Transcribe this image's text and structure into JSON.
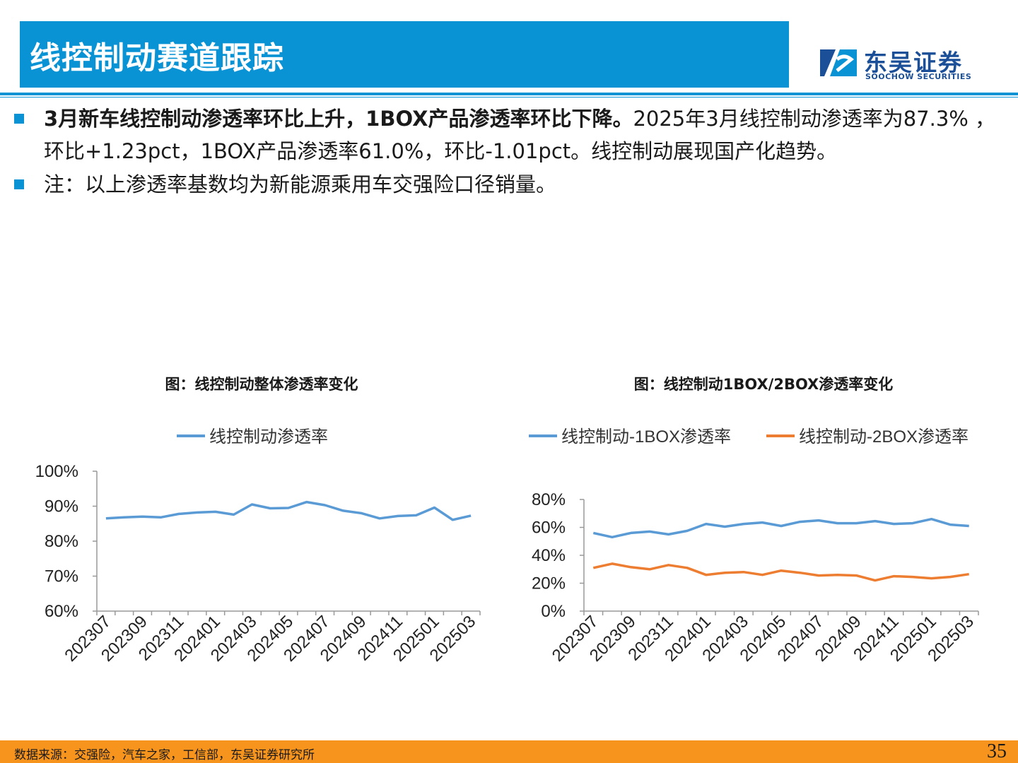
{
  "header": {
    "title": "线控制动赛道跟踪",
    "logo_cn": "东吴证券",
    "logo_en": "SOOCHOW SECURITIES"
  },
  "bullets": [
    {
      "bold": "3月新车线控制动渗透率环比上升，1BOX产品渗透率环比下降。",
      "text": "2025年3月线控制动渗透率为87.3% ，环比+1.23pct，1BOX产品渗透率61.0%，环比-1.01pct。线控制动展现国产化趋势。"
    },
    {
      "bold": "",
      "text": "注：以上渗透率基数均为新能源乘用车交强险口径销量。"
    }
  ],
  "colors": {
    "accent": "#0a93d4",
    "footer": "#f7941d",
    "series_blue": "#5b9bd5",
    "series_orange": "#ed7d31"
  },
  "chart_data": [
    {
      "type": "line",
      "title": "图：线控制动整体渗透率变化",
      "x": [
        "202307",
        "202308",
        "202309",
        "202310",
        "202311",
        "202312",
        "202401",
        "202402",
        "202403",
        "202404",
        "202405",
        "202406",
        "202407",
        "202408",
        "202409",
        "202410",
        "202411",
        "202412",
        "202501",
        "202502",
        "202503"
      ],
      "x_tick_labels": [
        "202307",
        "202309",
        "202311",
        "202401",
        "202403",
        "202405",
        "202407",
        "202409",
        "202411",
        "202501",
        "202503"
      ],
      "series": [
        {
          "name": "线控制动渗透率",
          "color": "#5b9bd5",
          "values": [
            86.5,
            86.8,
            87.0,
            86.8,
            87.8,
            88.2,
            88.4,
            87.6,
            90.5,
            89.4,
            89.5,
            91.2,
            90.3,
            88.7,
            88.0,
            86.5,
            87.2,
            87.4,
            89.6,
            86.1,
            87.3
          ]
        }
      ],
      "y_tick_labels": [
        "100%",
        "90%",
        "80%",
        "70%",
        "60%"
      ],
      "ylim": [
        60,
        100
      ],
      "legend": "top",
      "grid": false
    },
    {
      "type": "line",
      "title": "图：线控制动1BOX/2BOX渗透率变化",
      "x": [
        "202307",
        "202308",
        "202309",
        "202310",
        "202311",
        "202312",
        "202401",
        "202402",
        "202403",
        "202404",
        "202405",
        "202406",
        "202407",
        "202408",
        "202409",
        "202410",
        "202411",
        "202412",
        "202501",
        "202502",
        "202503"
      ],
      "x_tick_labels": [
        "202307",
        "202309",
        "202311",
        "202401",
        "202403",
        "202405",
        "202407",
        "202409",
        "202411",
        "202501",
        "202503"
      ],
      "series": [
        {
          "name": "线控制动-1BOX渗透率",
          "color": "#5b9bd5",
          "values": [
            56,
            53,
            56,
            57,
            55,
            57.5,
            62.5,
            60.5,
            62.5,
            63.5,
            61,
            64,
            65,
            63,
            63,
            64.5,
            62.5,
            63,
            66,
            62,
            61
          ]
        },
        {
          "name": "线控制动-2BOX渗透率",
          "color": "#ed7d31",
          "values": [
            31,
            34,
            31.5,
            30,
            33,
            31,
            26,
            27.5,
            28,
            26,
            29,
            27.5,
            25.5,
            26,
            25.5,
            22,
            25,
            24.5,
            23.5,
            24.5,
            26.5
          ]
        }
      ],
      "y_tick_labels": [
        "80%",
        "60%",
        "40%",
        "20%",
        "0%"
      ],
      "ylim": [
        0,
        80
      ],
      "legend": "top",
      "grid": false
    }
  ],
  "footer": {
    "source": "数据来源：交强险，汽车之家，工信部，东吴证券研究所",
    "page": "35"
  }
}
